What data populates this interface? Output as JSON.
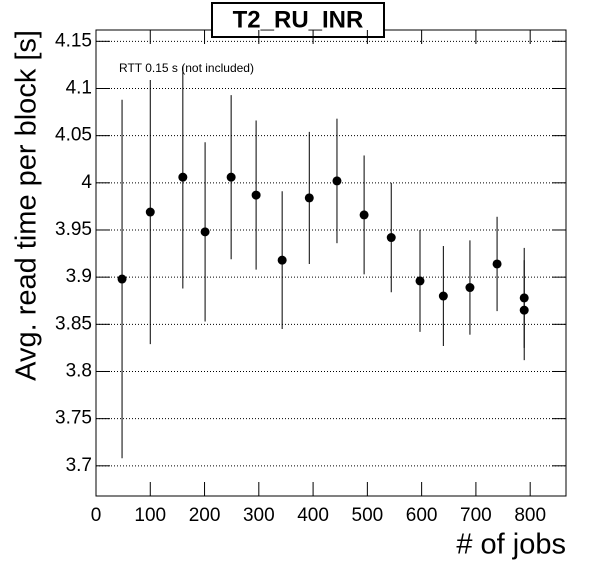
{
  "chart_data": {
    "type": "scatter",
    "title": "T2_RU_INR",
    "annotation": "RTT 0.15 s (not included)",
    "x_label": "# of jobs",
    "y_label": "Avg. read time per block [s]",
    "color": "#000000",
    "grid": "y",
    "x": [
      48,
      100,
      160,
      201,
      249,
      295,
      343,
      393,
      444,
      494,
      544,
      597,
      640,
      689,
      739,
      789,
      789
    ],
    "y": [
      3.898,
      3.969,
      4.006,
      3.948,
      4.006,
      3.987,
      3.918,
      3.984,
      4.002,
      3.966,
      3.942,
      3.896,
      3.88,
      3.889,
      3.914,
      3.878,
      3.865
    ],
    "yerr": [
      0.19,
      0.14,
      0.118,
      0.095,
      0.087,
      0.079,
      0.073,
      0.07,
      0.066,
      0.063,
      0.058,
      0.054,
      0.053,
      0.05,
      0.05,
      0.053,
      0.053
    ],
    "xlim": [
      0,
      866
    ],
    "ylim": [
      3.668,
      4.162
    ],
    "xticks": [
      0,
      100,
      200,
      300,
      400,
      500,
      600,
      700,
      800
    ],
    "yticks": [
      3.7,
      3.75,
      3.8,
      3.85,
      3.9,
      3.95,
      4,
      4.05,
      4.1,
      4.15
    ]
  }
}
